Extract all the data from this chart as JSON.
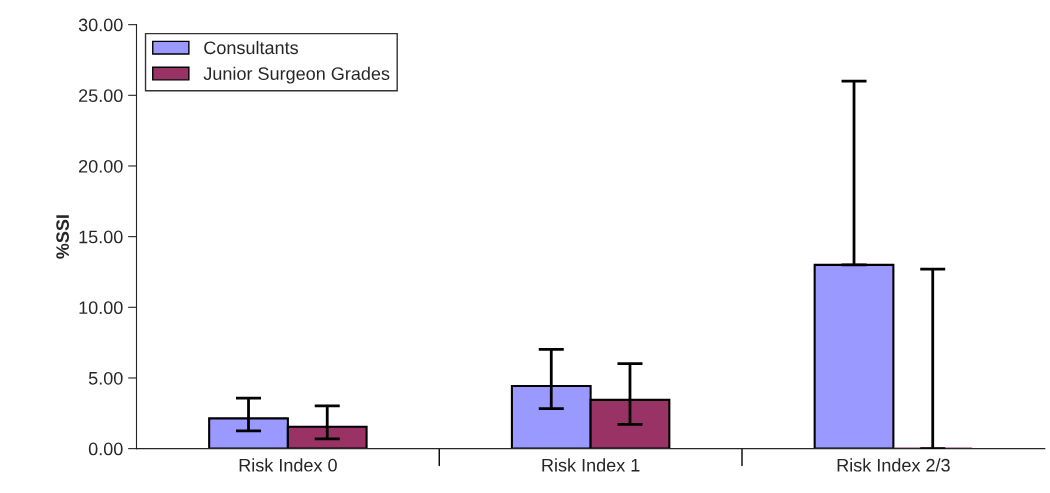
{
  "chart_data": {
    "type": "bar",
    "ylabel": "%SSI",
    "categories": [
      "Risk Index 0",
      "Risk Index 1",
      "Risk Index 2/3"
    ],
    "series": [
      {
        "name": "Consultants",
        "color": "#9999ff",
        "values": [
          2.14,
          4.43,
          13.0
        ],
        "errors": [
          [
            1.26,
            3.57
          ],
          [
            2.83,
            7.02
          ],
          [
            13.0,
            26.0
          ]
        ]
      },
      {
        "name": "Junior Surgeon Grades",
        "color": "#993366",
        "values": [
          1.55,
          3.45,
          0
        ],
        "errors": [
          [
            0.69,
            3.02
          ],
          [
            1.72,
            6.02
          ],
          [
            0,
            12.7
          ]
        ]
      }
    ],
    "ylim": [
      0,
      30
    ],
    "yticks": [
      {
        "value": 0,
        "label": "0.00"
      },
      {
        "value": 5,
        "label": "5.00"
      },
      {
        "value": 10,
        "label": "10.00"
      },
      {
        "value": 15,
        "label": "15.00"
      },
      {
        "value": 20,
        "label": "20.00"
      },
      {
        "value": 25,
        "label": "25.00"
      },
      {
        "value": 30,
        "label": "30.00"
      }
    ],
    "grid": false,
    "legend": "top left"
  }
}
